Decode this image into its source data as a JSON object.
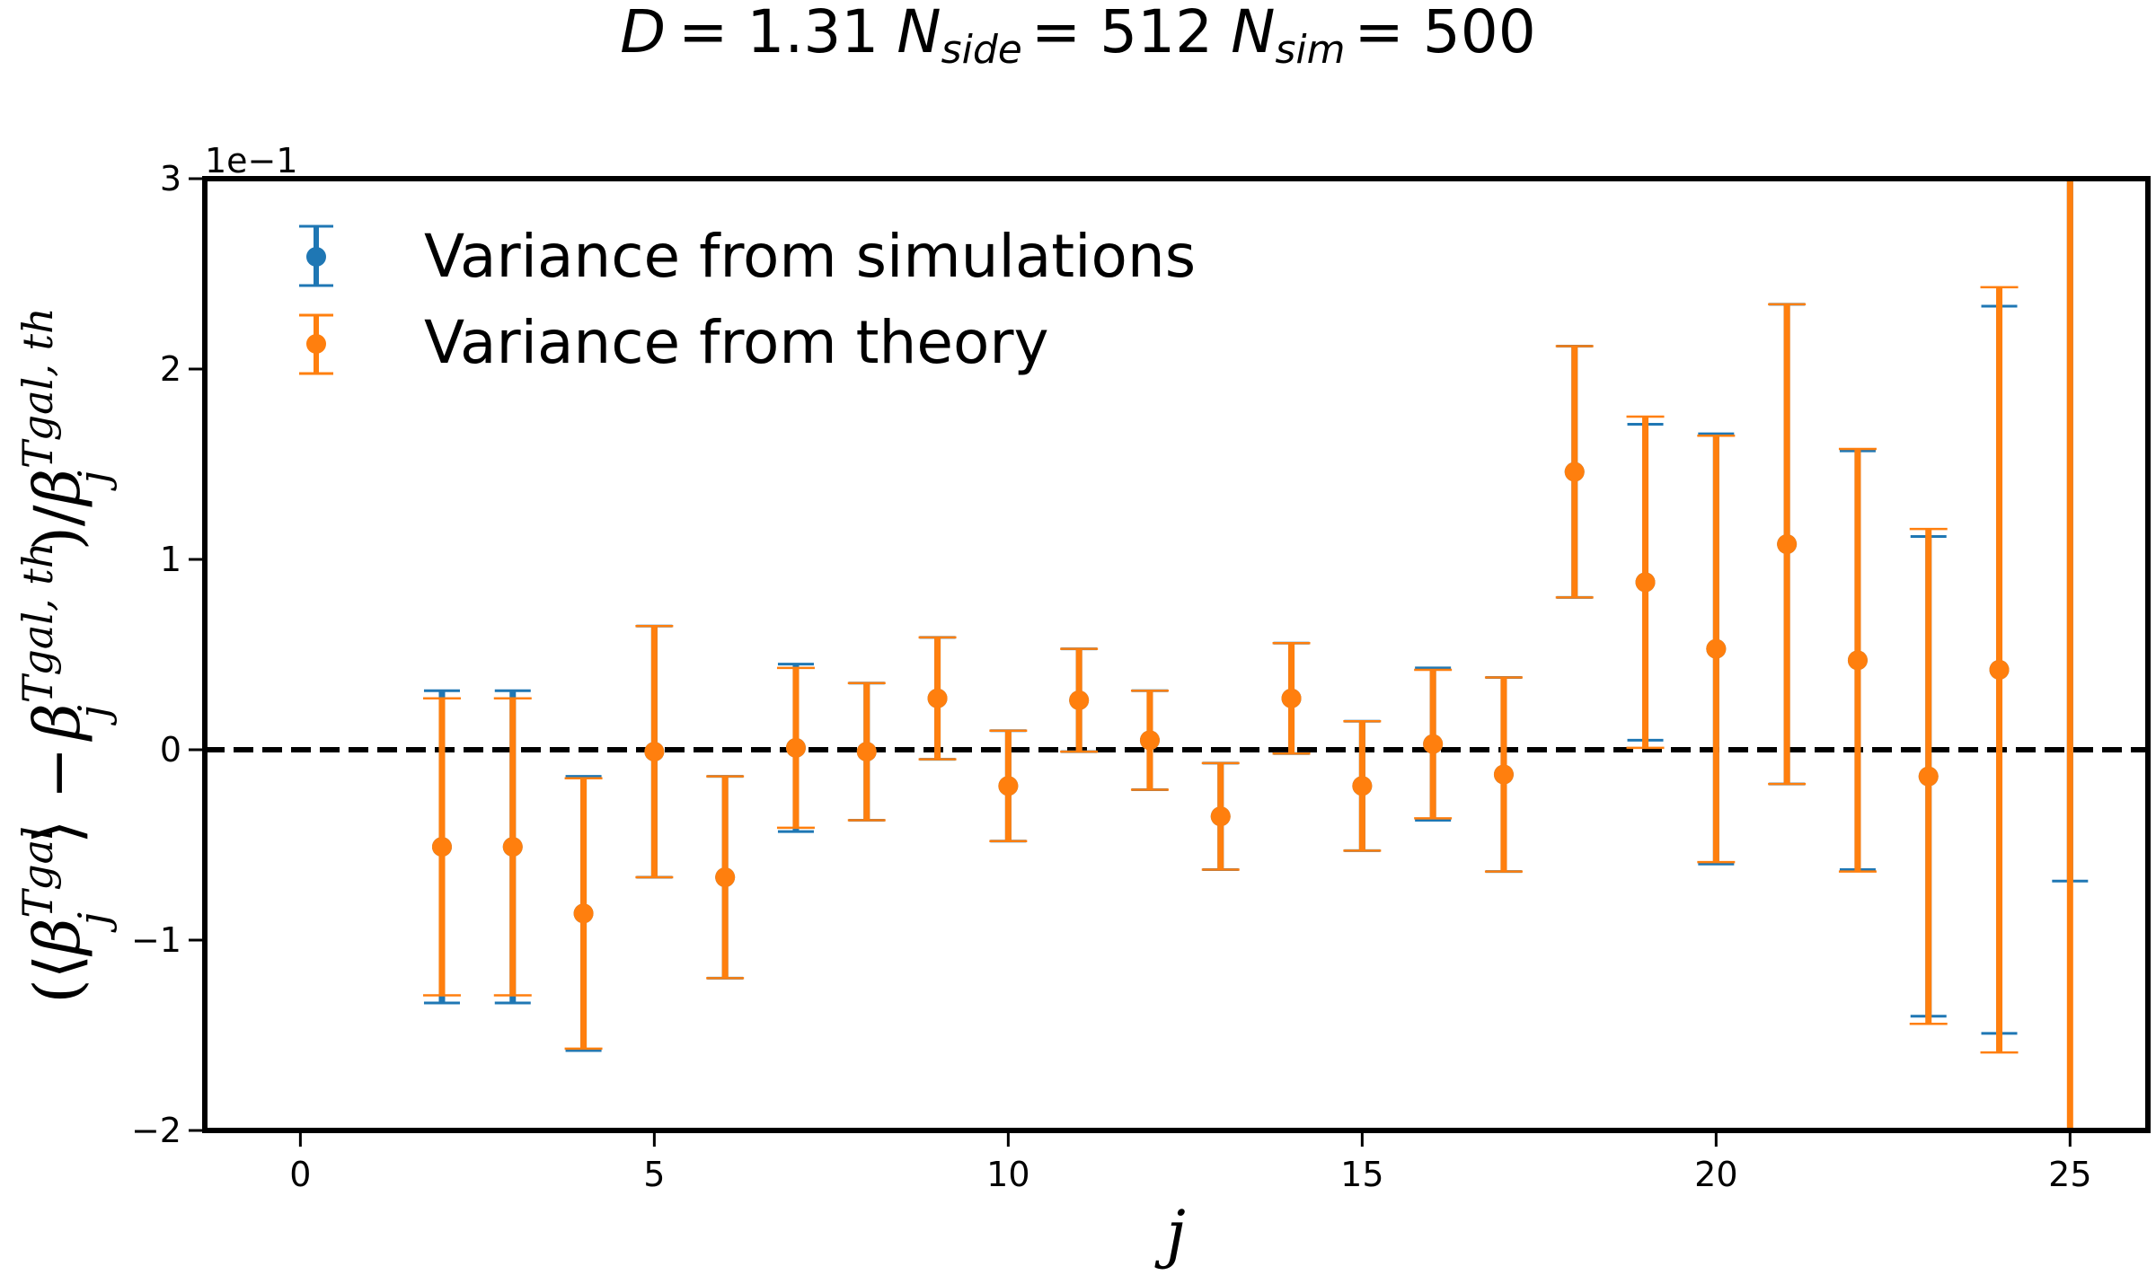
{
  "chart_data": {
    "type": "scatter",
    "title": "D = 1.31 N_side = 512 N_sim = 500",
    "title_parts": {
      "d_symbol": "D",
      "d_value": "= 1.31",
      "n_symbol": "N",
      "side_sub": "side",
      "side_value": "= 512",
      "sim_sub": "sim",
      "sim_value": "= 500"
    },
    "xlabel": "j",
    "ylabel": "(⟨β_j^{Tgal}⟩ − β_j^{Tgal, th})/β_j^{Tgal, th}",
    "ylabel_parts": {
      "open_paren": "(⟨",
      "beta1": "β",
      "sup1": "Tgal",
      "sub1": "j",
      "close_angle": "⟩ −",
      "beta2": "β",
      "sup2": "Tgal, th",
      "sub2": "j",
      "slash": ")/",
      "beta3": "β",
      "sup3": "Tgal, th",
      "sub3": "j"
    },
    "y_scale_label": "1e−1",
    "xlim": [
      -1.35,
      26.1
    ],
    "ylim": [
      -2,
      3
    ],
    "x_ticks": [
      "0",
      "5",
      "10",
      "15",
      "20",
      "25"
    ],
    "y_ticks": [
      "−2",
      "−1",
      "0",
      "1",
      "2",
      "3"
    ],
    "grid": false,
    "legend_position": "top-left",
    "reference_line": {
      "y": 0,
      "style": "dashed",
      "color": "#000000"
    },
    "series": [
      {
        "name": "Variance from simulations",
        "color": "#1f77b4",
        "x": [
          2,
          3,
          4,
          5,
          6,
          7,
          8,
          9,
          10,
          11,
          12,
          13,
          14,
          15,
          16,
          17,
          18,
          19,
          20,
          21,
          22,
          23,
          24,
          25
        ],
        "y": [
          -0.51,
          -0.51,
          -0.86,
          -0.01,
          -0.67,
          0.01,
          -0.01,
          0.27,
          -0.19,
          0.26,
          0.05,
          -0.35,
          0.27,
          -0.19,
          0.03,
          -0.13,
          1.46,
          0.88,
          0.53,
          1.08,
          0.47,
          -0.14,
          0.42,
          3.25
        ],
        "yerr": [
          0.82,
          0.82,
          0.72,
          0.66,
          0.53,
          0.44,
          0.36,
          0.32,
          0.29,
          0.27,
          0.26,
          0.28,
          0.29,
          0.34,
          0.4,
          0.51,
          0.66,
          0.83,
          1.13,
          1.26,
          1.1,
          1.26,
          1.91,
          3.94
        ]
      },
      {
        "name": "Variance from theory",
        "color": "#ff7f0e",
        "x": [
          2,
          3,
          4,
          5,
          6,
          7,
          8,
          9,
          10,
          11,
          12,
          13,
          14,
          15,
          16,
          17,
          18,
          19,
          20,
          21,
          22,
          23,
          24,
          25
        ],
        "y": [
          -0.51,
          -0.51,
          -0.86,
          -0.01,
          -0.67,
          0.01,
          -0.01,
          0.27,
          -0.19,
          0.26,
          0.05,
          -0.35,
          0.27,
          -0.19,
          0.03,
          -0.13,
          1.46,
          0.88,
          0.53,
          1.08,
          0.47,
          -0.14,
          0.42,
          3.25
        ],
        "yerr": [
          0.78,
          0.78,
          0.71,
          0.66,
          0.53,
          0.42,
          0.36,
          0.32,
          0.29,
          0.27,
          0.26,
          0.28,
          0.29,
          0.34,
          0.39,
          0.51,
          0.66,
          0.87,
          1.12,
          1.26,
          1.11,
          1.3,
          2.01,
          5.5
        ]
      }
    ]
  }
}
